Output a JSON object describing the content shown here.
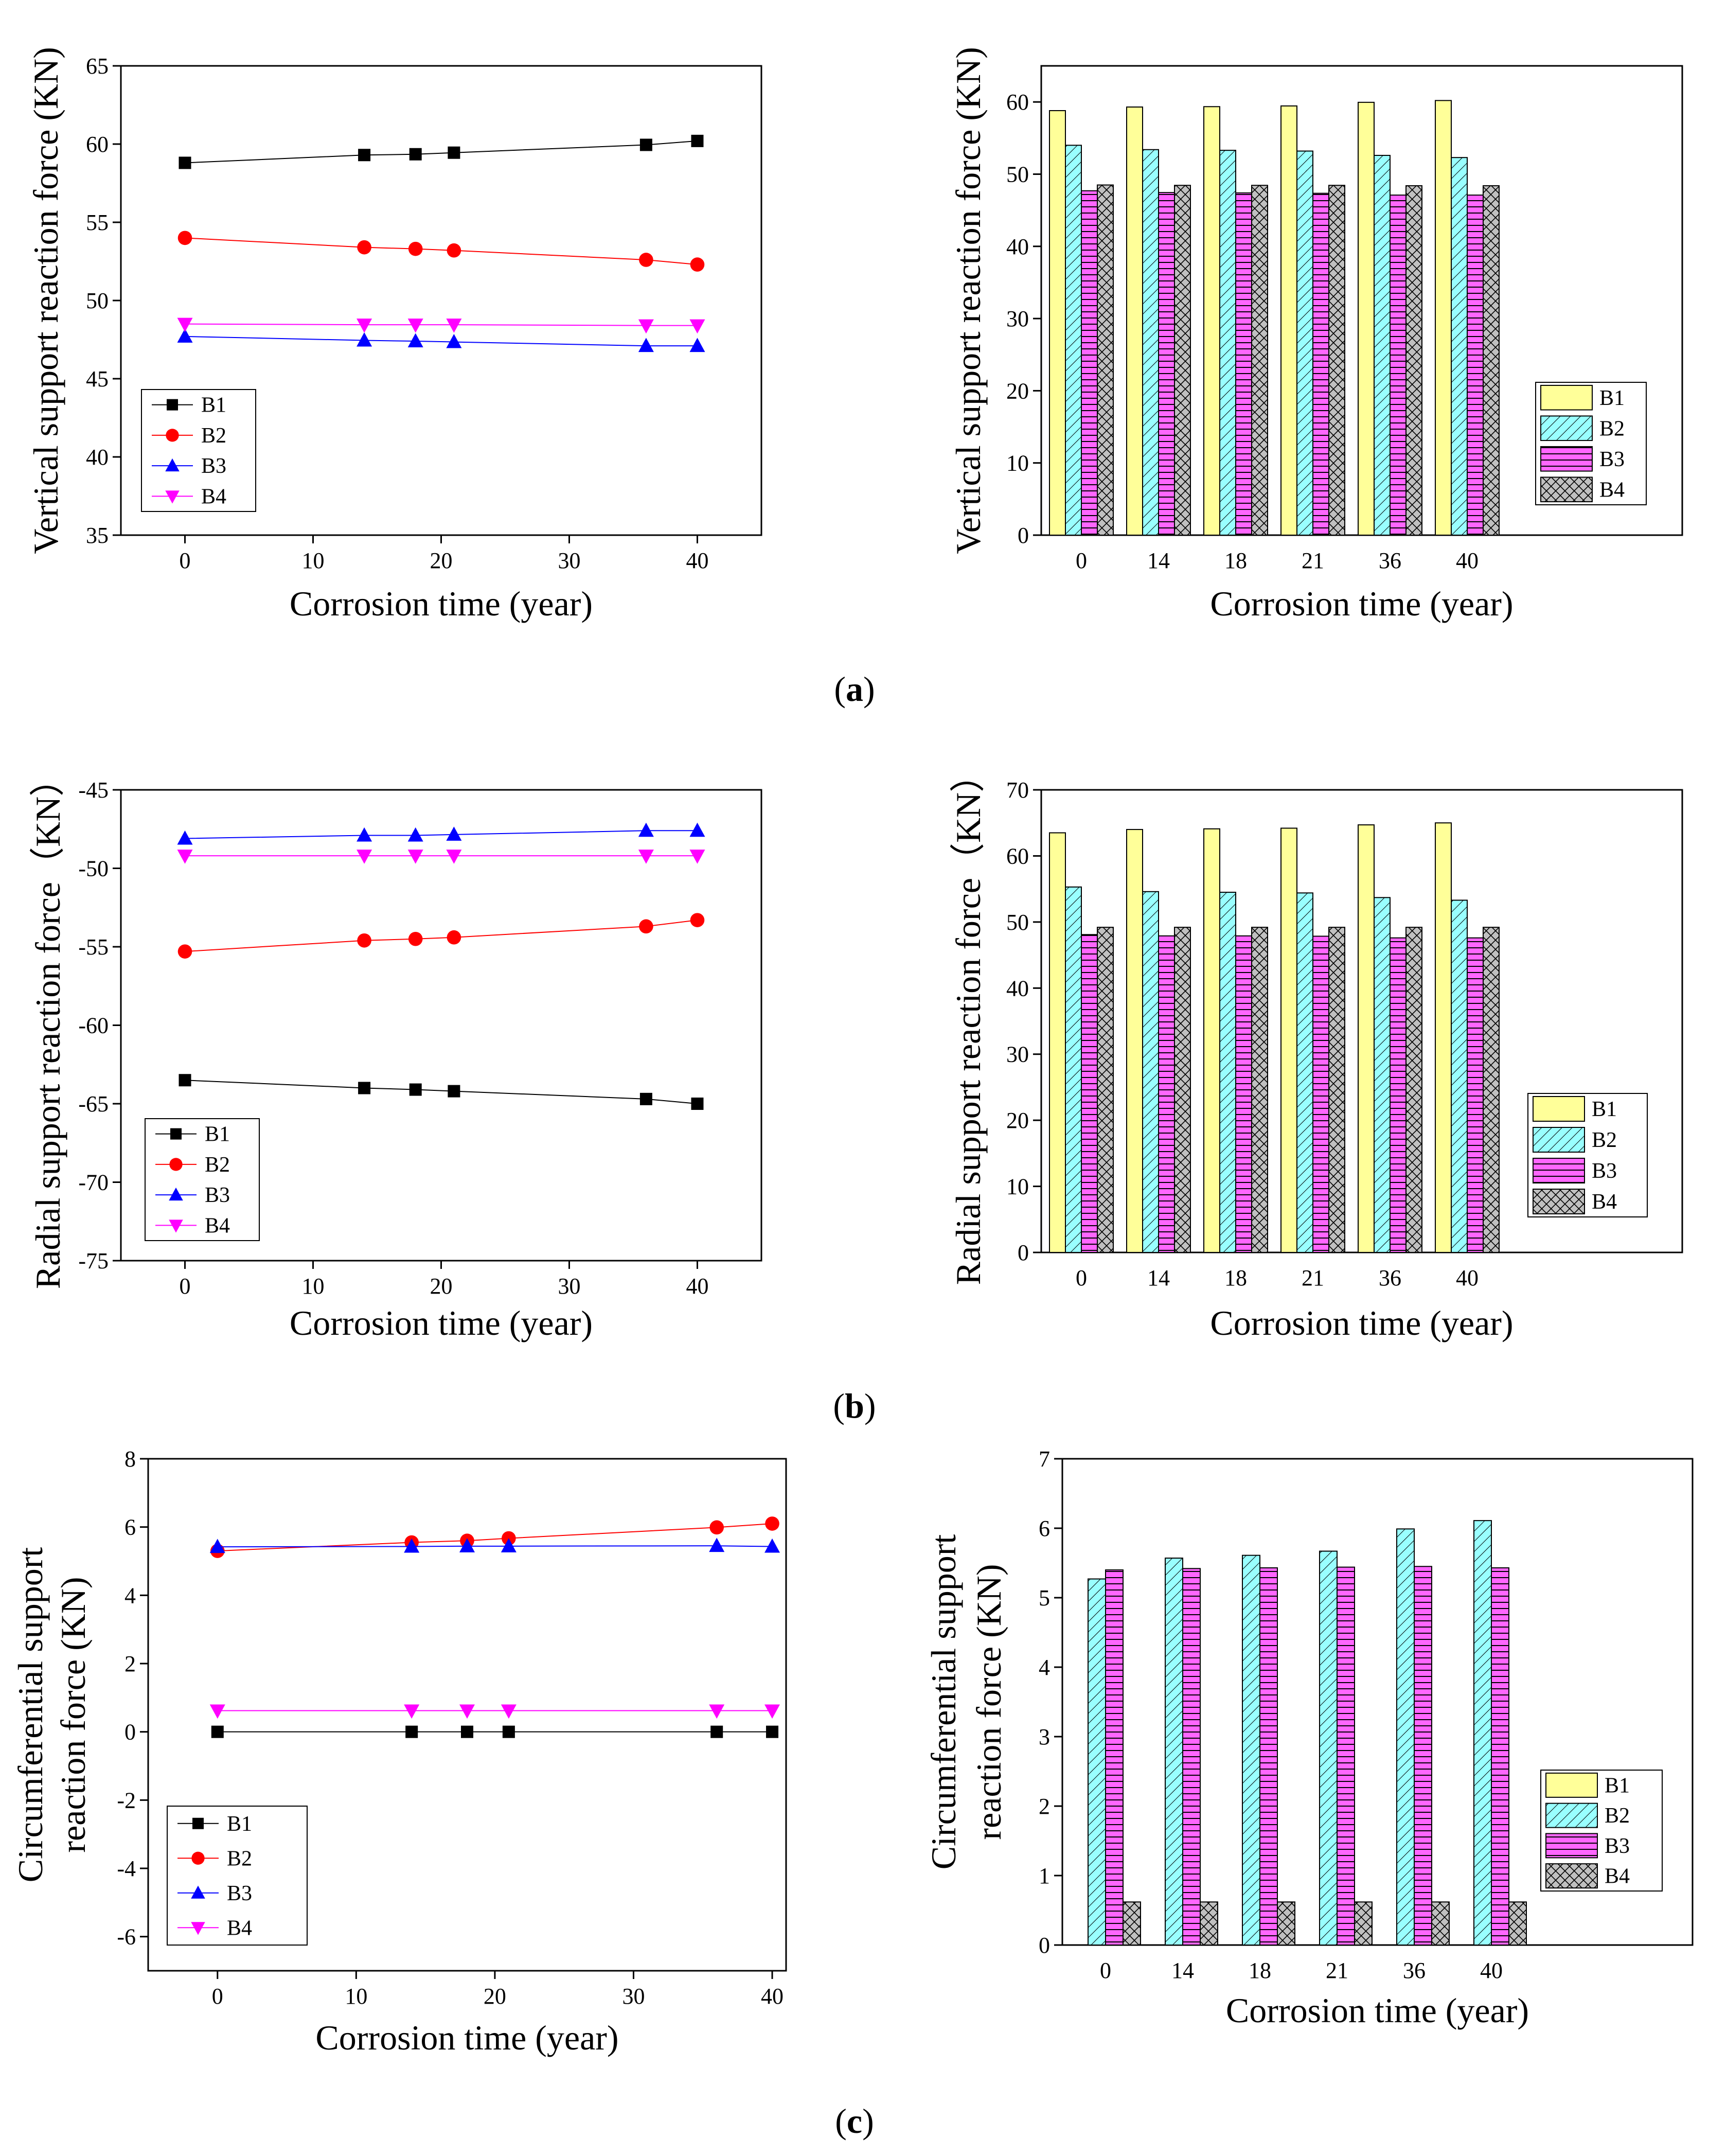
{
  "figure": {
    "captions": [
      "(a)",
      "(b)",
      "(c)"
    ],
    "caption_parts": [
      {
        "open": "(",
        "letter": "a",
        "close": ")"
      },
      {
        "open": "(",
        "letter": "b",
        "close": ")"
      },
      {
        "open": "(",
        "letter": "c",
        "close": ")"
      }
    ]
  },
  "colors": {
    "B1_line": "#000000",
    "B2_line": "#ff0000",
    "B3_line": "#0000ff",
    "B4_line": "#ff00ff",
    "B1_bar": "#ffff99",
    "B2_bar": "#99ffff",
    "B3_bar": "#ff66ff",
    "B4_bar": "#c0c0c0"
  },
  "chart_data": [
    {
      "id": "a-line",
      "panel": "a",
      "type": "line",
      "xlabel": "Corrosion time (year)",
      "ylabel_lines": [
        "Vertical support reaction force (KN)"
      ],
      "xlim": [
        -5,
        45
      ],
      "ylim": [
        35,
        65
      ],
      "xticks": [
        0,
        10,
        20,
        30,
        40
      ],
      "yticks": [
        35,
        40,
        45,
        50,
        55,
        60,
        65
      ],
      "x": [
        0,
        14,
        18,
        21,
        36,
        40
      ],
      "series": [
        {
          "name": "B1",
          "values": [
            58.8,
            59.3,
            59.35,
            59.45,
            59.95,
            60.2
          ]
        },
        {
          "name": "B2",
          "values": [
            54.0,
            53.4,
            53.3,
            53.2,
            52.6,
            52.3
          ]
        },
        {
          "name": "B3",
          "values": [
            47.7,
            47.45,
            47.4,
            47.35,
            47.1,
            47.1
          ]
        },
        {
          "name": "B4",
          "values": [
            48.5,
            48.45,
            48.45,
            48.45,
            48.4,
            48.4
          ]
        }
      ],
      "legend": [
        "B1",
        "B2",
        "B3",
        "B4"
      ],
      "legend_position": "bottom-left"
    },
    {
      "id": "a-bar",
      "panel": "a",
      "type": "bar",
      "xlabel": "Corrosion time (year)",
      "ylabel_lines": [
        "Vertical support reaction force (KN)"
      ],
      "ylim": [
        0,
        65
      ],
      "yticks": [
        0,
        10,
        20,
        30,
        40,
        50,
        60
      ],
      "categories": [
        "0",
        "14",
        "18",
        "21",
        "36",
        "40"
      ],
      "series": [
        {
          "name": "B1",
          "values": [
            58.8,
            59.3,
            59.35,
            59.45,
            59.95,
            60.2
          ]
        },
        {
          "name": "B2",
          "values": [
            54.0,
            53.4,
            53.3,
            53.2,
            52.6,
            52.3
          ]
        },
        {
          "name": "B3",
          "values": [
            47.7,
            47.45,
            47.4,
            47.35,
            47.1,
            47.1
          ]
        },
        {
          "name": "B4",
          "values": [
            48.5,
            48.45,
            48.45,
            48.45,
            48.4,
            48.4
          ]
        }
      ],
      "legend": [
        "B1",
        "B2",
        "B3",
        "B4"
      ],
      "legend_position": "middle-right"
    },
    {
      "id": "b-line",
      "panel": "b",
      "type": "line",
      "xlabel": "Corrosion time (year)",
      "ylabel_lines": [
        "Radial support reaction force（KN）"
      ],
      "xlim": [
        -5,
        45
      ],
      "ylim": [
        -75,
        -45
      ],
      "xticks": [
        0,
        10,
        20,
        30,
        40
      ],
      "yticks": [
        -75,
        -70,
        -65,
        -60,
        -55,
        -50,
        -45
      ],
      "x": [
        0,
        14,
        18,
        21,
        36,
        40
      ],
      "series": [
        {
          "name": "B1",
          "values": [
            -63.5,
            -64.0,
            -64.1,
            -64.2,
            -64.7,
            -65.0
          ]
        },
        {
          "name": "B2",
          "values": [
            -55.3,
            -54.6,
            -54.5,
            -54.4,
            -53.7,
            -53.3
          ]
        },
        {
          "name": "B3",
          "values": [
            -48.1,
            -47.9,
            -47.9,
            -47.85,
            -47.6,
            -47.6
          ]
        },
        {
          "name": "B4",
          "values": [
            -49.2,
            -49.2,
            -49.2,
            -49.2,
            -49.2,
            -49.2
          ]
        }
      ],
      "legend": [
        "B1",
        "B2",
        "B3",
        "B4"
      ],
      "legend_position": "bottom-left"
    },
    {
      "id": "b-bar",
      "panel": "b",
      "type": "bar",
      "xlabel": "Corrosion time (year)",
      "ylabel_lines": [
        "Radial support reaction force（KN）"
      ],
      "ylim": [
        0,
        70
      ],
      "yticks": [
        0,
        10,
        20,
        30,
        40,
        50,
        60,
        70
      ],
      "categories": [
        "0",
        "14",
        "18",
        "21",
        "36",
        "40"
      ],
      "series": [
        {
          "name": "B1",
          "values": [
            63.5,
            64.0,
            64.1,
            64.2,
            64.7,
            65.0
          ]
        },
        {
          "name": "B2",
          "values": [
            55.3,
            54.6,
            54.5,
            54.4,
            53.7,
            53.3
          ]
        },
        {
          "name": "B3",
          "values": [
            48.1,
            47.9,
            47.9,
            47.85,
            47.6,
            47.6
          ]
        },
        {
          "name": "B4",
          "values": [
            49.2,
            49.2,
            49.2,
            49.2,
            49.2,
            49.2
          ]
        }
      ],
      "legend": [
        "B1",
        "B2",
        "B3",
        "B4"
      ],
      "legend_position": "bottom-right"
    },
    {
      "id": "c-line",
      "panel": "c",
      "type": "line",
      "xlabel": "Corrosion time (year)",
      "ylabel_lines": [
        "Circumferential support",
        "reaction force (KN)"
      ],
      "xlim": [
        -5,
        41
      ],
      "ylim": [
        -7,
        8
      ],
      "xticks": [
        0,
        10,
        20,
        30,
        40
      ],
      "yticks": [
        -6,
        -4,
        -2,
        0,
        2,
        4,
        6,
        8
      ],
      "x": [
        0,
        14,
        18,
        21,
        36,
        40
      ],
      "series": [
        {
          "name": "B1",
          "values": [
            0,
            0,
            0,
            0,
            0,
            0
          ]
        },
        {
          "name": "B2",
          "values": [
            5.3,
            5.55,
            5.6,
            5.67,
            5.99,
            6.1
          ]
        },
        {
          "name": "B3",
          "values": [
            5.42,
            5.43,
            5.44,
            5.44,
            5.45,
            5.43
          ]
        },
        {
          "name": "B4",
          "values": [
            0.62,
            0.62,
            0.62,
            0.62,
            0.62,
            0.62
          ]
        }
      ],
      "legend": [
        "B1",
        "B2",
        "B3",
        "B4"
      ],
      "legend_position": "bottom-left"
    },
    {
      "id": "c-bar",
      "panel": "c",
      "type": "bar",
      "xlabel": "Corrosion time (year)",
      "ylabel_lines": [
        "Circumferential support",
        "reaction force (KN)"
      ],
      "ylim": [
        0,
        7
      ],
      "yticks": [
        0,
        1,
        2,
        3,
        4,
        5,
        6,
        7
      ],
      "categories": [
        "0",
        "14",
        "18",
        "21",
        "36",
        "40"
      ],
      "series": [
        {
          "name": "B1",
          "values": [
            0,
            0,
            0,
            0,
            0,
            0
          ]
        },
        {
          "name": "B2",
          "values": [
            5.27,
            5.57,
            5.61,
            5.67,
            5.99,
            6.11
          ]
        },
        {
          "name": "B3",
          "values": [
            5.4,
            5.42,
            5.43,
            5.44,
            5.45,
            5.43
          ]
        },
        {
          "name": "B4",
          "values": [
            0.62,
            0.62,
            0.62,
            0.62,
            0.62,
            0.62
          ]
        }
      ],
      "legend": [
        "B1",
        "B2",
        "B3",
        "B4"
      ],
      "legend_position": "bottom-right"
    }
  ]
}
